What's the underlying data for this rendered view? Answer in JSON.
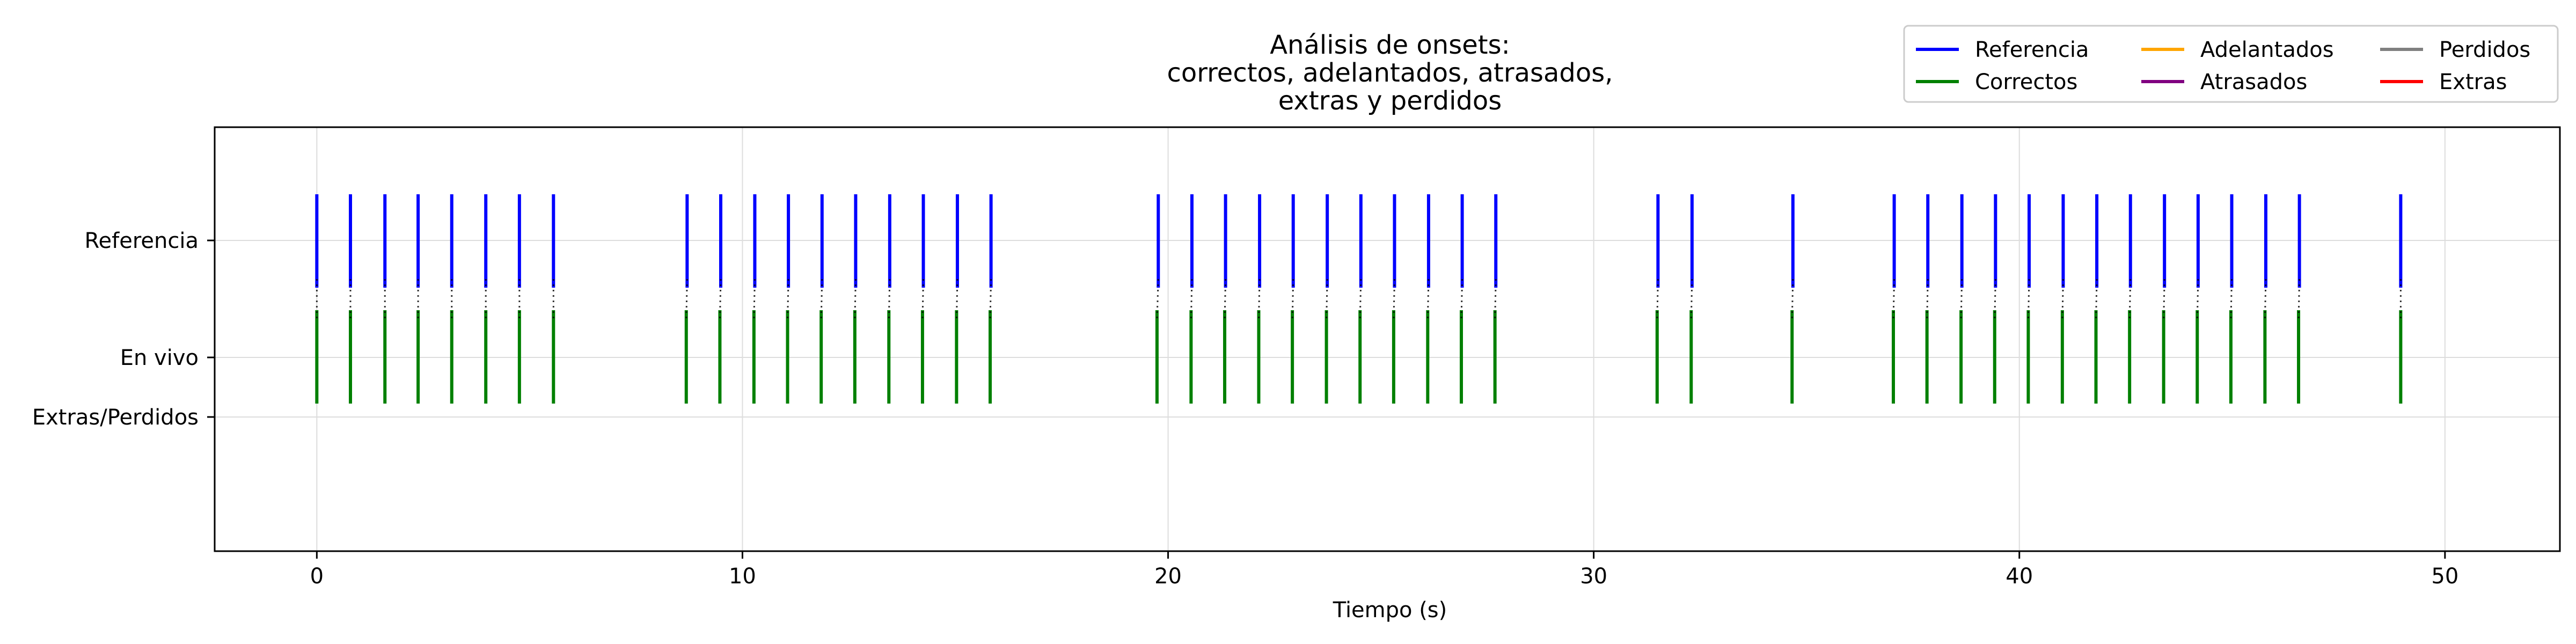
{
  "chart_data": {
    "type": "event",
    "title": [
      "Análisis de onsets:",
      "correctos, adelantados, atrasados,",
      "extras y perdidos"
    ],
    "xlabel": "Tiempo (s)",
    "ylabel": "",
    "xlim": [
      -2.4,
      52.7
    ],
    "xticks": [
      0,
      10,
      20,
      30,
      40,
      50
    ],
    "y_categories": [
      "Referencia",
      "En vivo",
      "Extras/Perdidos"
    ],
    "grid": true,
    "legend_position": "top-right",
    "colors": {
      "Referencia": "#0000ff",
      "Correctos": "#008000",
      "Adelantados": "#ffa500",
      "Atrasados": "#800080",
      "Perdidos": "#808080",
      "Extras": "#ff0000"
    },
    "series": [
      {
        "name": "Referencia",
        "x": [
          0.0,
          0.79,
          1.6,
          2.38,
          3.17,
          3.97,
          4.76,
          5.56,
          8.7,
          9.49,
          10.29,
          11.08,
          11.87,
          12.66,
          13.46,
          14.25,
          15.05,
          15.84,
          19.77,
          20.56,
          21.35,
          22.15,
          22.94,
          23.74,
          24.53,
          25.32,
          26.12,
          26.91,
          27.7,
          31.51,
          32.31,
          34.68,
          37.06,
          37.85,
          38.65,
          39.44,
          40.23,
          41.03,
          41.82,
          42.61,
          43.41,
          44.2,
          44.99,
          45.79,
          46.58,
          48.96
        ]
      },
      {
        "name": "Correctos",
        "x": [
          0.0,
          0.79,
          1.6,
          2.38,
          3.17,
          3.97,
          4.76,
          5.56,
          8.68,
          9.47,
          10.27,
          11.06,
          11.85,
          12.64,
          13.44,
          14.23,
          15.03,
          15.82,
          19.74,
          20.54,
          21.33,
          22.13,
          22.92,
          23.72,
          24.51,
          25.3,
          26.1,
          26.89,
          27.68,
          31.49,
          32.29,
          34.66,
          37.04,
          37.83,
          38.63,
          39.42,
          40.21,
          41.01,
          41.8,
          42.59,
          43.39,
          44.18,
          44.97,
          45.77,
          46.56,
          48.96
        ]
      },
      {
        "name": "Adelantados",
        "x": []
      },
      {
        "name": "Atrasados",
        "x": []
      },
      {
        "name": "Perdidos",
        "x": []
      },
      {
        "name": "Extras",
        "x": []
      }
    ]
  }
}
